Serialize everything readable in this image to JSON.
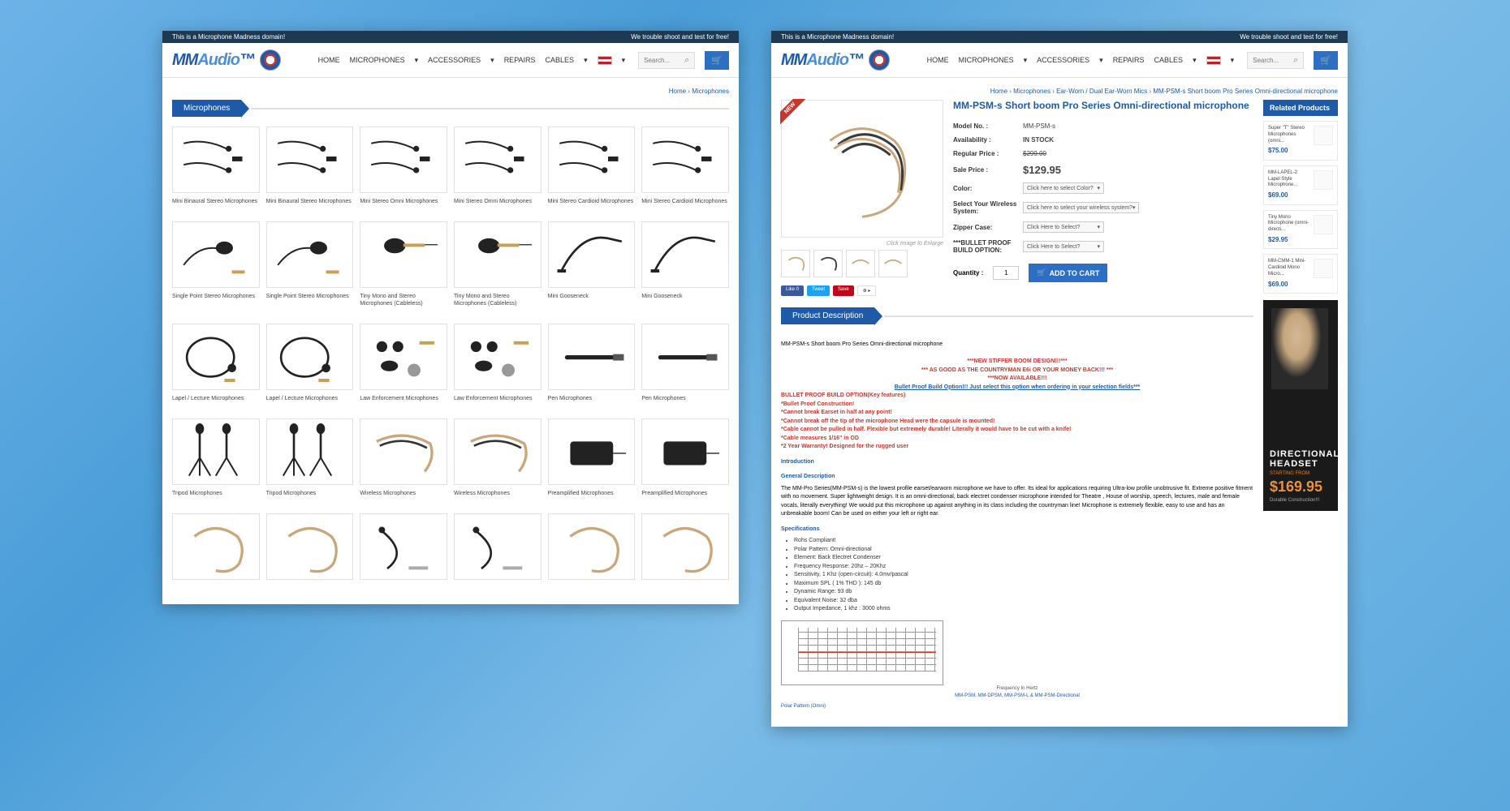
{
  "top": {
    "left": "This is a Microphone Madness domain!",
    "right": "We trouble shoot and test for free!"
  },
  "brand": {
    "mm": "MM",
    "audio": "Audio"
  },
  "nav": {
    "home": "HOME",
    "mic": "MICROPHONES",
    "acc": "ACCESSORIES",
    "rep": "REPAIRS",
    "cab": "CABLES"
  },
  "search": {
    "ph": "Search..."
  },
  "cat": {
    "crumb_home": "Home",
    "crumb_cur": "Microphones",
    "title": "Microphones",
    "items": [
      "Mini Binaural Stereo Microphones",
      "Mini Binaural Stereo Microphones",
      "Mini Stereo Omni Microphones",
      "Mini Stereo Omni Microphones",
      "Mini Stereo Cardioid Microphones",
      "Mini Stereo Cardioid Microphones",
      "Single Point Stereo Microphones",
      "Single Point Stereo Microphones",
      "Tiny Mono and Stereo Microphones (Cableless)",
      "Tiny Mono and Stereo Microphones (Cableless)",
      "Mini Gooseneck",
      "Mini Gooseneck",
      "Lapel / Lecture Microphones",
      "Lapel / Lecture Microphones",
      "Law Enforcement Microphones",
      "Law Enforcement Microphones",
      "Pen Microphones",
      "Pen Microphones",
      "Tripod Microphones",
      "Tripod Microphones",
      "Wireless Microphones",
      "Wireless Microphones",
      "Preamplified Microphones",
      "Preamplified Microphones",
      "",
      "",
      "",
      "",
      "",
      ""
    ]
  },
  "prod": {
    "crumb": [
      "Home",
      "Microphones",
      "Ear-Worn / Dual Ear-Worn Mics",
      "MM-PSM-s Short boom Pro Series Omni-directional microphone"
    ],
    "title": "MM-PSM-s Short boom Pro Series Omni-directional microphone",
    "img_cap": "Click Image to Enlarge",
    "rows": {
      "model_k": "Model No. :",
      "model_v": "MM-PSM-s",
      "avail_k": "Availability :",
      "avail_v": "IN STOCK",
      "reg_k": "Regular Price :",
      "reg_v": "$299.00",
      "sale_k": "Sale Price :",
      "sale_v": "$129.95",
      "color_k": "Color:",
      "color_v": "Click here to select Color?",
      "sys_k": "Select Your Wireless System:",
      "sys_v": "Click here to select your wireless system?",
      "zip_k": "Zipper Case:",
      "zip_v": "Click Here to Select?",
      "bp_k": "***BULLET PROOF BUILD OPTION:",
      "bp_v": "Click Here to Select?",
      "qty_k": "Quantity :",
      "qty_v": "1",
      "add": "ADD TO CART"
    },
    "social": {
      "like": "Like 0",
      "tweet": "Tweet",
      "save": "Save"
    },
    "rel_title": "Related Products",
    "rel": [
      {
        "n": "Super \"T\" Stereo Microphones (omni...",
        "p": "$75.00"
      },
      {
        "n": "MM-LAPEL-2 Lapel Style Microphone...",
        "p": "$69.00"
      },
      {
        "n": "Tiny Mono Microphone (omni-directi...",
        "p": "$29.95"
      },
      {
        "n": "MM-CMM-1 Mini-Cardioid Mono Micro...",
        "p": "$69.00"
      }
    ],
    "promo": {
      "t1": "DIRECTIONAL HEADSET",
      "t2": "STARTING FROM",
      "t3": "$169.95",
      "t4": "Durable Construction!!!"
    },
    "desc_title": "Product Description",
    "desc": {
      "l1": "MM-PSM-s Short boom Pro Series Omni-directional microphone",
      "r1": "***NEW STIFFER BOOM DESIGN!!!***",
      "r2": "*** AS GOOD AS THE COUNTRYMAN E6i OR YOUR MONEY BACK!!! ***",
      "r3": "***NOW AVAILABLE!!!",
      "b1": "Bullet Proof Build Option!!! Just select this option when ordering in your selection fields***",
      "h1": "BULLET PROOF BUILD OPTION(Key features)",
      "f": [
        "*Bullet Proof Construction!",
        "*Cannot break Earset in half at any point!",
        "*Cannot break off the tip of the microphone Head were the capsule is mounted!",
        "*Cable cannot be pulled in half. Flexible but extremely durable! Literally it would have to be cut with a knife!",
        "*Cable measures 1/16\" in OD",
        "*2 Year Warranty! Designed for the rugged user"
      ],
      "h2": "Introduction",
      "h3": "General Description",
      "gd": "The MM-Pro Series(MM-PSM-s) is the lowest profile earset/earworn microphone we have to offer. Its ideal for applications requiring Ultra-low profile unobtrusive fit. Extreme positive fitment with no movement. Super lightweight design. It is an omni-directional, back electret condenser microphone intended for Theatre , House of worship, speech, lectures, male and female vocals, literally everything! We would put this microphone up against anything in its class including the countryman line! Microphone is extremely flexible, easy to use and has an unbreakable boom! Can be used on either your left or right ear.",
      "h4": "Specifications",
      "specs": [
        "Rohs Compliant!",
        "Polar Pattern: Omni-directional",
        "Element: Back Electret Condenser",
        "Frequency Response: 20hz – 20Khz",
        "Sensitivity, 1 Khz (open-circuit): 4.0mv/pascal",
        "Maximum SPL ( 1% THD ): 145 db",
        "Dynamic Range: 93 db",
        "Equivalent Noise: 32 dba",
        "Output Impedance, 1 khz : 3000 ohms"
      ],
      "chart_x": "Frequency In Hertz",
      "chart_cap": "MM-PSM, MM-DPSM, MM-PSM-L & MM-PSM-Directional",
      "polar": "Polar Pattern (Omni)"
    }
  }
}
